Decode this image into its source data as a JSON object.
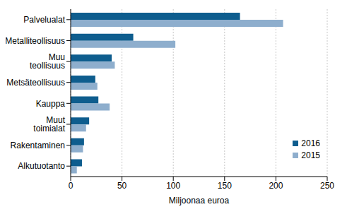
{
  "chart_data": {
    "type": "bar",
    "orientation": "horizontal",
    "categories": [
      "Palvelualat",
      "Metalliteollisuus",
      "Muu teollisuus",
      "Metsäteollisuus",
      "Kauppa",
      "Muut toimialat",
      "Rakentaminen",
      "Alkutuotanto"
    ],
    "series": [
      {
        "name": "2016",
        "color": "#0e5d8e",
        "values": [
          165,
          61,
          40,
          24,
          27,
          18,
          13,
          11
        ]
      },
      {
        "name": "2015",
        "color": "#8eaecd",
        "values": [
          207,
          102,
          43,
          26,
          38,
          15,
          12,
          6
        ]
      }
    ],
    "xlabel": "Miljoonaa euroa",
    "xlim": [
      0,
      250
    ],
    "xticks": [
      0,
      50,
      100,
      150,
      200,
      250
    ],
    "grid": true,
    "legend": "lower right"
  }
}
